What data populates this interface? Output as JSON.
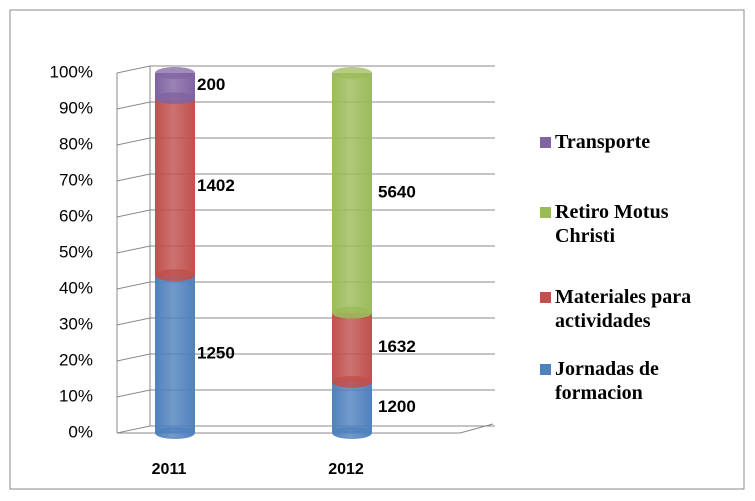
{
  "chart_data": {
    "type": "bar",
    "stacking": "percent",
    "shape": "cylinder",
    "categories": [
      "2011",
      "2012"
    ],
    "series": [
      {
        "name": "Jornadas de formacion",
        "color": "#4f81bd",
        "values": [
          1250,
          1200
        ]
      },
      {
        "name": "Materiales para actividades",
        "color": "#c0504d",
        "values": [
          1402,
          1632
        ]
      },
      {
        "name": "Retiro Motus Christi",
        "color": "#9bbb59",
        "values": [
          null,
          5640
        ]
      },
      {
        "name": "Transporte",
        "color": "#8064a2",
        "values": [
          200,
          null
        ]
      }
    ],
    "ylim": [
      0,
      100
    ],
    "yticks": [
      {
        "value": 0,
        "label": "0%"
      },
      {
        "value": 10,
        "label": "10%"
      },
      {
        "value": 20,
        "label": "20%"
      },
      {
        "value": 30,
        "label": "30%"
      },
      {
        "value": 40,
        "label": "40%"
      },
      {
        "value": 50,
        "label": "50%"
      },
      {
        "value": 60,
        "label": "60%"
      },
      {
        "value": 70,
        "label": "70%"
      },
      {
        "value": 80,
        "label": "80%"
      },
      {
        "value": 90,
        "label": "90%"
      },
      {
        "value": 100,
        "label": "100%"
      }
    ],
    "grid": true,
    "legend": "right"
  }
}
